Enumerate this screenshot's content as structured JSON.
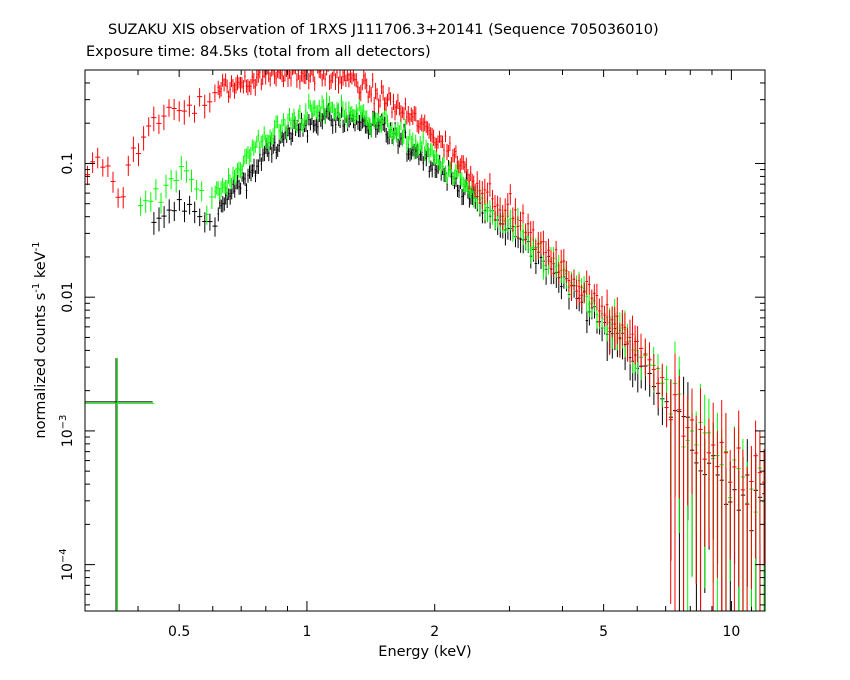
{
  "title": "SUZAKU XIS observation of 1RXS J111706.3+20141 (Sequence 705036010)",
  "subtitle": "Exposure time: 84.5ks (total from all detectors)",
  "chart_data": {
    "type": "scatter",
    "title": "SUZAKU XIS observation of 1RXS J111706.3+20141 (Sequence 705036010)",
    "subtitle": "Exposure time: 84.5ks (total from all detectors)",
    "xlabel": "Energy (keV)",
    "ylabel_main": "normalized counts s",
    "ylabel_sup1": "-1",
    "ylabel_mid": " keV",
    "ylabel_sup2": "-1",
    "x_scale": "log",
    "y_scale": "log",
    "xlim": [
      0.3,
      12
    ],
    "ylim": [
      4.5e-05,
      0.5
    ],
    "x_ticks": [
      {
        "value": 0.5,
        "label": "0.5"
      },
      {
        "value": 1,
        "label": "1"
      },
      {
        "value": 2,
        "label": "2"
      },
      {
        "value": 5,
        "label": "5"
      },
      {
        "value": 10,
        "label": "10"
      }
    ],
    "y_ticks": [
      {
        "value": 0.1,
        "label": "0.1",
        "base": "",
        "exp": ""
      },
      {
        "value": 0.01,
        "label": "0.01",
        "base": "",
        "exp": ""
      },
      {
        "value": 0.001,
        "label": "",
        "base": "10",
        "exp": "−3"
      },
      {
        "value": 0.0001,
        "label": "",
        "base": "10",
        "exp": "−4"
      }
    ],
    "grid": false,
    "series": [
      {
        "color": "#ff0000",
        "x_range": [
          0.3,
          12
        ],
        "points": [
          [
            0.3,
            0.1
          ],
          [
            0.32,
            0.11
          ],
          [
            0.34,
            0.09
          ],
          [
            0.36,
            0.05
          ],
          [
            0.38,
            0.13
          ],
          [
            0.4,
            0.14
          ],
          [
            0.43,
            0.19
          ],
          [
            0.46,
            0.24
          ],
          [
            0.5,
            0.26
          ],
          [
            0.55,
            0.28
          ],
          [
            0.6,
            0.33
          ],
          [
            0.65,
            0.37
          ],
          [
            0.7,
            0.4
          ],
          [
            0.75,
            0.44
          ],
          [
            0.8,
            0.46
          ],
          [
            0.9,
            0.48
          ],
          [
            1.0,
            0.48
          ],
          [
            1.1,
            0.46
          ],
          [
            1.2,
            0.44
          ],
          [
            1.3,
            0.4
          ],
          [
            1.5,
            0.31
          ],
          [
            1.7,
            0.24
          ],
          [
            2.0,
            0.16
          ],
          [
            2.3,
            0.1
          ],
          [
            2.6,
            0.065
          ],
          [
            3.0,
            0.045
          ],
          [
            3.5,
            0.025
          ],
          [
            4.0,
            0.016
          ],
          [
            4.5,
            0.011
          ],
          [
            5.0,
            0.008
          ],
          [
            5.5,
            0.006
          ],
          [
            6.0,
            0.0045
          ],
          [
            6.5,
            0.0028
          ],
          [
            7.0,
            0.0015
          ],
          [
            7.5,
            0.0011
          ],
          [
            8.0,
            0.0009
          ],
          [
            9.0,
            0.0007
          ],
          [
            10.0,
            0.0006
          ],
          [
            11.0,
            0.0005
          ],
          [
            12.0,
            0.0005
          ]
        ]
      },
      {
        "color": "#00ff00",
        "x_range": [
          0.4,
          12
        ],
        "points": [
          [
            0.42,
            0.05
          ],
          [
            0.45,
            0.065
          ],
          [
            0.48,
            0.075
          ],
          [
            0.52,
            0.085
          ],
          [
            0.56,
            0.05
          ],
          [
            0.6,
            0.06
          ],
          [
            0.65,
            0.075
          ],
          [
            0.7,
            0.1
          ],
          [
            0.75,
            0.13
          ],
          [
            0.8,
            0.16
          ],
          [
            0.9,
            0.2
          ],
          [
            1.0,
            0.24
          ],
          [
            1.1,
            0.26
          ],
          [
            1.2,
            0.25
          ],
          [
            1.3,
            0.24
          ],
          [
            1.5,
            0.21
          ],
          [
            1.7,
            0.16
          ],
          [
            2.0,
            0.11
          ],
          [
            2.3,
            0.075
          ],
          [
            2.6,
            0.048
          ],
          [
            3.0,
            0.034
          ],
          [
            3.5,
            0.022
          ],
          [
            4.0,
            0.015
          ],
          [
            4.5,
            0.01
          ],
          [
            5.0,
            0.007
          ],
          [
            5.5,
            0.0055
          ],
          [
            6.0,
            0.004
          ],
          [
            6.5,
            0.003
          ],
          [
            7.0,
            0.0018
          ],
          [
            7.5,
            0.0012
          ],
          [
            8.0,
            0.0009
          ],
          [
            9.0,
            0.0006
          ],
          [
            10.0,
            0.0004
          ],
          [
            11.0,
            0.00035
          ]
        ]
      },
      {
        "color": "#000000",
        "x_range": [
          0.43,
          12
        ],
        "points": [
          [
            0.43,
            0.033
          ],
          [
            0.47,
            0.045
          ],
          [
            0.5,
            0.05
          ],
          [
            0.54,
            0.04
          ],
          [
            0.58,
            0.035
          ],
          [
            0.62,
            0.045
          ],
          [
            0.66,
            0.06
          ],
          [
            0.7,
            0.075
          ],
          [
            0.75,
            0.09
          ],
          [
            0.8,
            0.12
          ],
          [
            0.9,
            0.16
          ],
          [
            1.0,
            0.2
          ],
          [
            1.1,
            0.22
          ],
          [
            1.2,
            0.22
          ],
          [
            1.3,
            0.21
          ],
          [
            1.5,
            0.18
          ],
          [
            1.7,
            0.14
          ],
          [
            2.0,
            0.1
          ],
          [
            2.3,
            0.068
          ],
          [
            2.6,
            0.045
          ],
          [
            3.0,
            0.031
          ],
          [
            3.5,
            0.02
          ],
          [
            4.0,
            0.013
          ],
          [
            4.5,
            0.009
          ],
          [
            5.0,
            0.006
          ],
          [
            5.5,
            0.0048
          ],
          [
            6.0,
            0.0035
          ],
          [
            6.5,
            0.0025
          ],
          [
            7.0,
            0.0015
          ],
          [
            7.5,
            0.001
          ],
          [
            8.0,
            0.0008
          ],
          [
            9.0,
            0.0005
          ],
          [
            10.0,
            0.0003
          ],
          [
            11.0,
            0.00025
          ]
        ]
      }
    ],
    "legend_marker": {
      "colors": [
        "#000000",
        "#00ff00"
      ],
      "x_center": 0.355,
      "x_half_span_factor": 1.22,
      "y_center": 0.00165,
      "y_top": 0.0035,
      "y_bottom": 4.5e-05
    }
  }
}
